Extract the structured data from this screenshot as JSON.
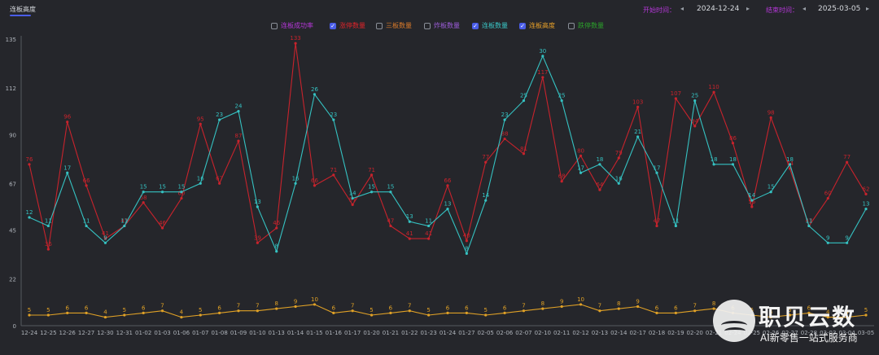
{
  "tab": {
    "label": "连板高度"
  },
  "date_range": {
    "start_label": "开始时间：",
    "start_value": "2024-12-24",
    "end_label": "结束时间：",
    "end_value": "2025-03-05"
  },
  "legend": [
    {
      "label": "连板成功率",
      "checked": false,
      "color": "#b537d8"
    },
    {
      "label": "涨停数量",
      "checked": true,
      "color": "#e0242a"
    },
    {
      "label": "三板数量",
      "checked": false,
      "color": "#d97a2a"
    },
    {
      "label": "炸板数量",
      "checked": false,
      "color": "#9c5cd8"
    },
    {
      "label": "连板数量",
      "checked": true,
      "color": "#3ac6c6"
    },
    {
      "label": "连板高度",
      "checked": true,
      "color": "#e8a028"
    },
    {
      "label": "跌停数量",
      "checked": false,
      "color": "#2ba02b"
    }
  ],
  "chart_data": {
    "type": "line",
    "ylim": [
      0,
      135
    ],
    "yticks": [
      0,
      22,
      45,
      67,
      90,
      112,
      135
    ],
    "grid": false,
    "categories": [
      "12-24",
      "12-25",
      "12-26",
      "12-27",
      "12-30",
      "12-31",
      "01-02",
      "01-03",
      "01-06",
      "01-07",
      "01-08",
      "01-09",
      "01-10",
      "01-13",
      "01-14",
      "01-15",
      "01-16",
      "01-17",
      "01-20",
      "01-21",
      "01-22",
      "01-23",
      "01-24",
      "01-27",
      "02-05",
      "02-06",
      "02-07",
      "02-10",
      "02-11",
      "02-12",
      "02-13",
      "02-14",
      "02-17",
      "02-18",
      "02-19",
      "02-20",
      "02-21",
      "02-24",
      "02-25",
      "02-26",
      "02-27",
      "02-28",
      "03-03",
      "03-04",
      "03-05"
    ],
    "series": [
      {
        "name": "涨停数量",
        "color": "#c8232c",
        "values": [
          76,
          36,
          96,
          66,
          41,
          47,
          58,
          46,
          60,
          95,
          67,
          87,
          39,
          46,
          133,
          66,
          71,
          57,
          71,
          47,
          41,
          41,
          66,
          40,
          77,
          88,
          81,
          117,
          68,
          80,
          64,
          79,
          103,
          47,
          107,
          94,
          110,
          86,
          56,
          98,
          74,
          47,
          60,
          77,
          62
        ]
      },
      {
        "name": "连板数量",
        "color": "#35c2c2",
        "values": [
          51,
          47,
          72,
          47,
          39,
          47,
          63,
          63,
          63,
          67,
          97,
          101,
          56,
          35,
          67,
          109,
          97,
          60,
          63,
          63,
          49,
          47,
          55,
          34,
          59,
          97,
          106,
          127,
          106,
          72,
          76,
          67,
          89,
          72,
          47,
          106,
          76,
          76,
          59,
          63,
          76,
          47,
          39,
          39,
          55
        ]
      },
      {
        "name": "连板高度",
        "color": "#e0a126",
        "values": [
          5,
          5,
          6,
          6,
          4,
          5,
          6,
          7,
          4,
          5,
          6,
          7,
          7,
          8,
          9,
          10,
          6,
          7,
          5,
          6,
          7,
          5,
          6,
          6,
          5,
          6,
          7,
          8,
          9,
          10,
          7,
          8,
          9,
          6,
          6,
          7,
          8,
          6,
          5,
          4,
          5,
          6,
          4,
          4,
          5
        ]
      }
    ],
    "point_labels": {
      "涨停数量": [
        "76",
        "36",
        "96",
        "66",
        "41",
        "47",
        "58",
        "46",
        "60",
        "95",
        "67",
        "87",
        "39",
        "46",
        "133",
        "66",
        "71",
        "57",
        "71",
        "47",
        "41",
        "41",
        "66",
        "40",
        "77",
        "88",
        "81",
        "117",
        "68",
        "80",
        "64",
        "79",
        "103",
        "47",
        "107",
        "94",
        "110",
        "86",
        "56",
        "98",
        "74",
        "47",
        "60",
        "77",
        "62"
      ],
      "连板数量": [
        "12",
        "11",
        "17",
        "11",
        "9",
        "11",
        "15",
        "15",
        "15",
        "16",
        "23",
        "24",
        "13",
        "8",
        "16",
        "26",
        "23",
        "14",
        "15",
        "15",
        "13",
        "11",
        "13",
        "8",
        "14",
        "23",
        "25",
        "30",
        "25",
        "17",
        "18",
        "16",
        "21",
        "17",
        "11",
        "25",
        "18",
        "18",
        "14",
        "15",
        "18",
        "11",
        "9",
        "9",
        "13"
      ],
      "连板高度": [
        "5",
        "5",
        "6",
        "6",
        "4",
        "5",
        "6",
        "7",
        "4",
        "5",
        "6",
        "7",
        "7",
        "8",
        "9",
        "10",
        "6",
        "7",
        "5",
        "6",
        "7",
        "5",
        "6",
        "6",
        "5",
        "6",
        "7",
        "8",
        "9",
        "10",
        "7",
        "8",
        "9",
        "6",
        "6",
        "7",
        "8",
        "6",
        "5",
        "4",
        "5",
        "6",
        "4",
        "4",
        "5"
      ]
    }
  },
  "watermark": {
    "title": "职贝云数",
    "subtitle": "AI新零售一站式服务商"
  }
}
